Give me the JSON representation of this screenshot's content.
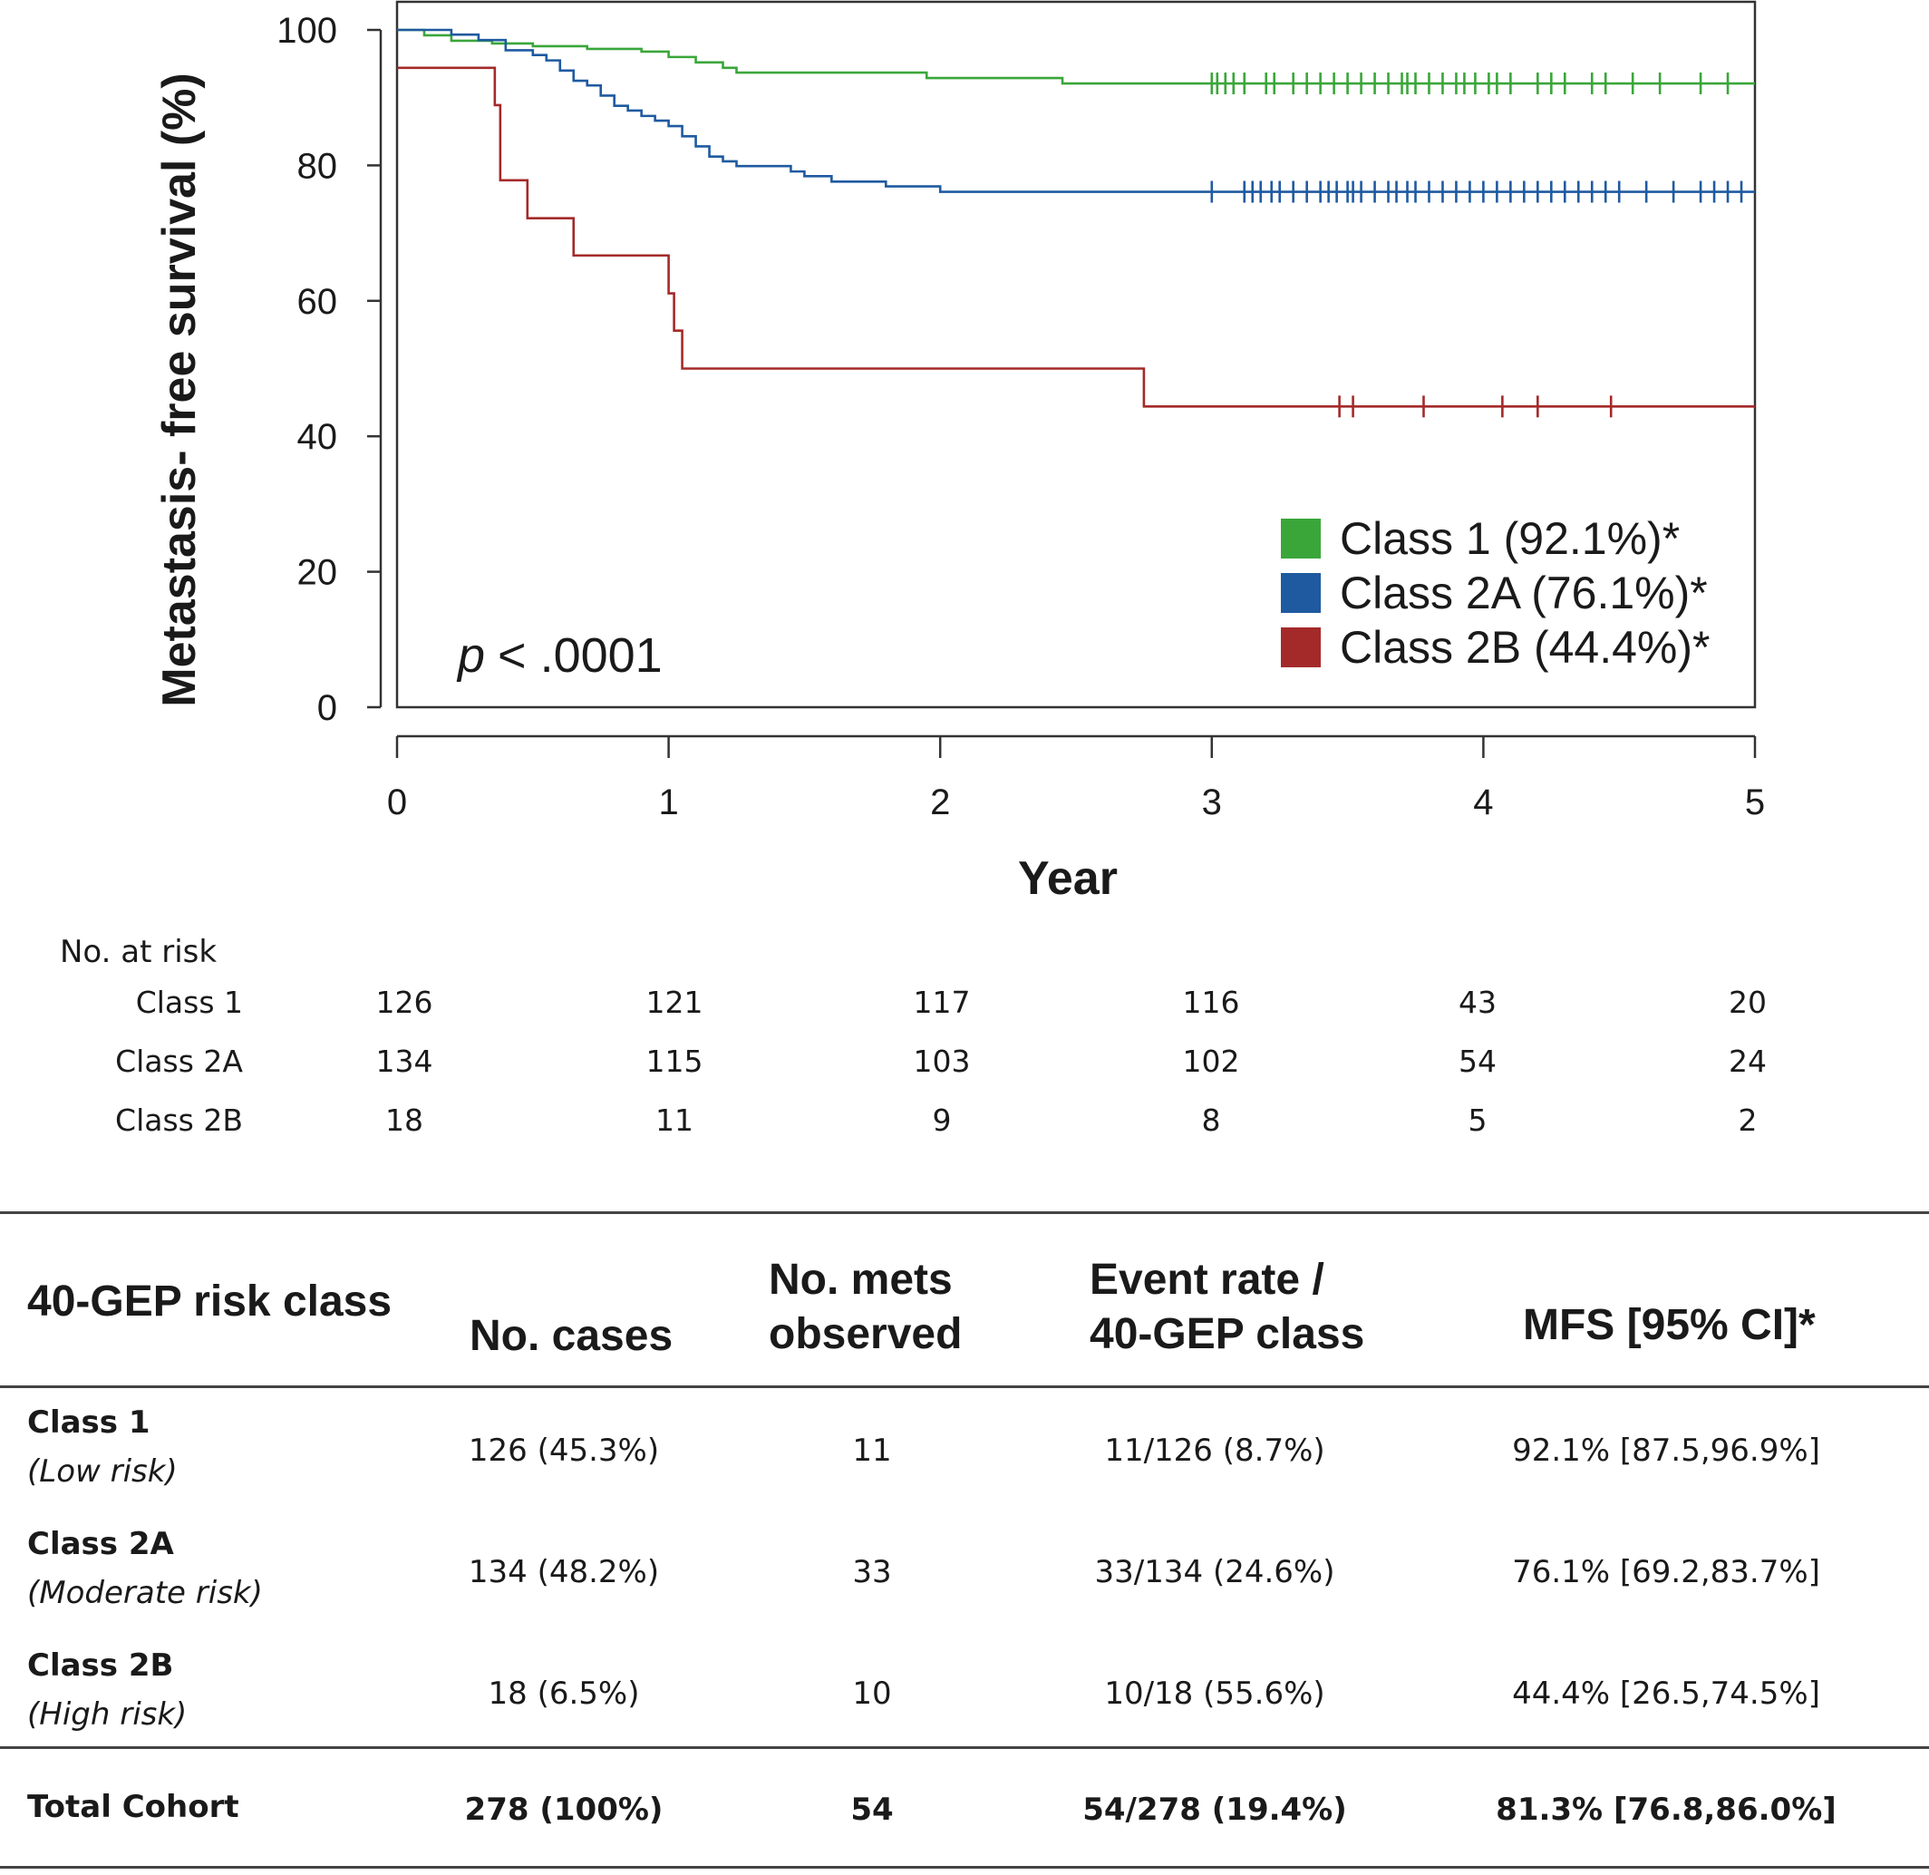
{
  "chart_data": {
    "type": "line",
    "ylabel": "Metastasis- free survival (%)",
    "xlabel": "Year",
    "xlim": [
      0,
      5
    ],
    "ylim": [
      0,
      100
    ],
    "xticks": [
      "0",
      "1",
      "2",
      "3",
      "4",
      "5"
    ],
    "yticks": [
      "0",
      "20",
      "40",
      "60",
      "80",
      "100"
    ],
    "grid": false,
    "legend_position": "lower-right",
    "annotation": "< .0001",
    "annotation_italic": "p",
    "series": [
      {
        "name": "Class 1 (92.1%)*",
        "color": "#3aa63a",
        "x": [
          0,
          0.1,
          0.2,
          0.35,
          0.5,
          0.7,
          0.9,
          1.0,
          1.1,
          1.2,
          1.25,
          1.4,
          1.8,
          1.95,
          2.4,
          2.45,
          5.0
        ],
        "y": [
          100,
          99.2,
          98.4,
          98.0,
          97.6,
          97.2,
          96.8,
          96.0,
          95.2,
          94.4,
          93.7,
          93.7,
          93.7,
          92.9,
          92.9,
          92.1,
          92.1
        ],
        "censor_x": [
          3.0,
          3.02,
          3.05,
          3.08,
          3.12,
          3.2,
          3.23,
          3.3,
          3.35,
          3.4,
          3.45,
          3.5,
          3.55,
          3.6,
          3.65,
          3.7,
          3.72,
          3.75,
          3.8,
          3.85,
          3.9,
          3.93,
          3.97,
          4.02,
          4.05,
          4.1,
          4.2,
          4.25,
          4.3,
          4.4,
          4.45,
          4.55,
          4.65,
          4.8,
          4.9
        ]
      },
      {
        "name": "Class 2A (76.1%)*",
        "color": "#1f5aa0",
        "x": [
          0,
          0.2,
          0.3,
          0.4,
          0.5,
          0.55,
          0.6,
          0.65,
          0.7,
          0.75,
          0.8,
          0.85,
          0.9,
          0.95,
          1.0,
          1.05,
          1.1,
          1.15,
          1.2,
          1.25,
          1.3,
          1.45,
          1.5,
          1.6,
          1.7,
          1.8,
          1.9,
          2.0,
          2.6,
          2.75,
          5.0
        ],
        "y": [
          100,
          99.3,
          98.5,
          97.0,
          96.3,
          95.5,
          94.0,
          92.5,
          91.8,
          90.3,
          88.8,
          88.1,
          87.3,
          86.6,
          85.8,
          84.3,
          82.8,
          81.3,
          80.6,
          79.9,
          79.9,
          79.1,
          78.4,
          77.6,
          77.6,
          76.9,
          76.9,
          76.1,
          76.1,
          76.1,
          76.1
        ],
        "censor_x": [
          3.0,
          3.12,
          3.15,
          3.18,
          3.22,
          3.25,
          3.3,
          3.35,
          3.4,
          3.43,
          3.46,
          3.5,
          3.52,
          3.55,
          3.6,
          3.65,
          3.68,
          3.72,
          3.75,
          3.8,
          3.85,
          3.9,
          3.95,
          4.0,
          4.05,
          4.1,
          4.15,
          4.2,
          4.25,
          4.3,
          4.35,
          4.4,
          4.45,
          4.5,
          4.6,
          4.7,
          4.8,
          4.85,
          4.9,
          4.95
        ]
      },
      {
        "name": "Class 2B (44.4%)*",
        "color": "#a42a2a",
        "x": [
          0,
          0.36,
          0.38,
          0.48,
          0.65,
          1.0,
          1.02,
          1.05,
          1.08,
          2.75,
          5.0
        ],
        "y": [
          94.4,
          88.9,
          77.8,
          72.2,
          66.7,
          61.1,
          55.6,
          50.0,
          50.0,
          44.4,
          44.4
        ],
        "censor_x": [
          3.47,
          3.52,
          3.78,
          4.07,
          4.2,
          4.47
        ]
      }
    ]
  },
  "risk_table": {
    "title": "No. at risk",
    "rows": [
      {
        "label": "Class 1",
        "values": [
          "126",
          "121",
          "117",
          "116",
          "43",
          "20"
        ]
      },
      {
        "label": "Class 2A",
        "values": [
          "134",
          "115",
          "103",
          "102",
          "54",
          "24"
        ]
      },
      {
        "label": "Class 2B",
        "values": [
          "18",
          "11",
          "9",
          "8",
          "5",
          "2"
        ]
      }
    ]
  },
  "summary_table": {
    "headers": {
      "risk_class": "40-GEP risk class",
      "cases": "No. cases",
      "mets_line1": "No. mets",
      "mets_line2": "observed",
      "rate_line1": "Event rate /",
      "rate_line2": "40-GEP class",
      "mfs": "MFS [95% CI]*"
    },
    "rows": [
      {
        "class": "Class 1",
        "risk": "(Low risk)",
        "cases": "126 (45.3%)",
        "mets": "11",
        "rate": "11/126 (8.7%)",
        "mfs": "92.1% [87.5,96.9%]"
      },
      {
        "class": "Class 2A",
        "risk": "(Moderate risk)",
        "cases": "134 (48.2%)",
        "mets": "33",
        "rate": "33/134 (24.6%)",
        "mfs": "76.1% [69.2,83.7%]"
      },
      {
        "class": "Class 2B",
        "risk": "(High risk)",
        "cases": "18 (6.5%)",
        "mets": "10",
        "rate": "10/18 (55.6%)",
        "mfs": "44.4% [26.5,74.5%]"
      }
    ],
    "total": {
      "label": "Total Cohort",
      "cases": "278 (100%)",
      "mets": "54",
      "rate": "54/278 (19.4%)",
      "mfs": "81.3% [76.8,86.0%]"
    }
  }
}
